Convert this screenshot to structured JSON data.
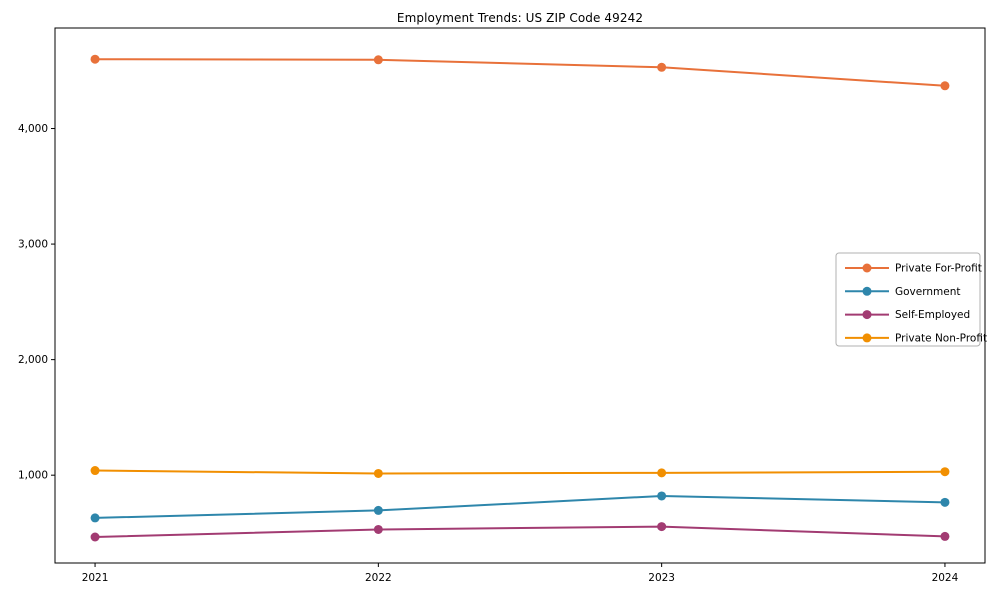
{
  "page": {
    "background_color": "#ffffff"
  },
  "chart_data": {
    "type": "line",
    "title": "Employment Trends: US ZIP Code 49242",
    "x": [
      2021,
      2022,
      2023,
      2024
    ],
    "x_tick_labels": [
      "2021",
      "2022",
      "2023",
      "2024"
    ],
    "series": [
      {
        "name": "Private For-Profit",
        "color": "#E8713A",
        "values": [
          4600,
          4595,
          4530,
          4370
        ]
      },
      {
        "name": "Government",
        "color": "#2E86AB",
        "values": [
          630,
          695,
          820,
          765
        ]
      },
      {
        "name": "Self-Employed",
        "color": "#A23B72",
        "values": [
          465,
          530,
          555,
          470
        ]
      },
      {
        "name": "Private Non-Profit",
        "color": "#F18F01",
        "values": [
          1040,
          1015,
          1020,
          1030
        ]
      }
    ],
    "yticks": [
      {
        "value": 1000,
        "label": "1,000"
      },
      {
        "value": 2000,
        "label": "2,000"
      },
      {
        "value": 3000,
        "label": "3,000"
      },
      {
        "value": 4000,
        "label": "4,000"
      }
    ],
    "xlim": [
      2020.8586,
      2024.1414
    ],
    "ylim": [
      240,
      4870
    ],
    "grid": false,
    "legend_position": "center-right",
    "axis_color": "#000000",
    "tick_label_color": "#000000",
    "legend_border_color": "#b0b0b0",
    "legend_background": "#ffffff",
    "xlabel": "",
    "ylabel": ""
  }
}
